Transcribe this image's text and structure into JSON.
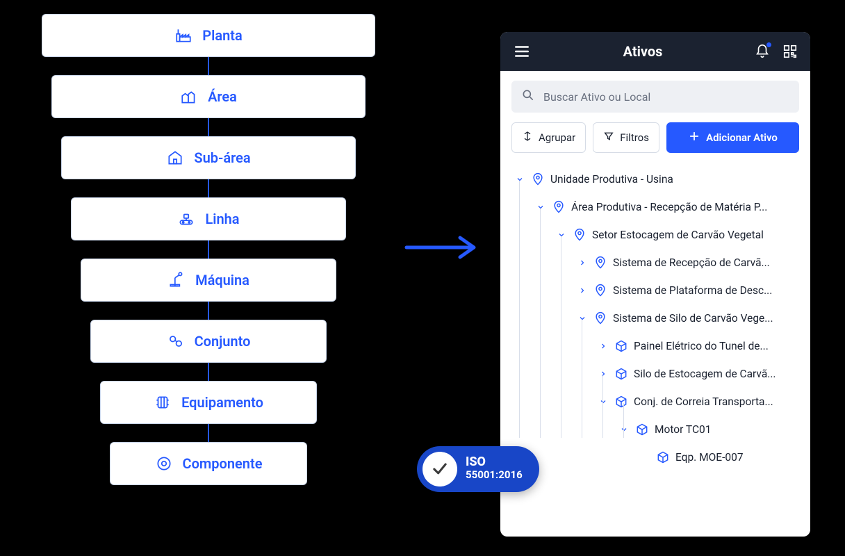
{
  "colors": {
    "accent": "#2659ff",
    "pageBg": "#000000",
    "panelBg": "#ffffff",
    "headerBg": "#1b2230",
    "searchBg": "#eef0f4",
    "border": "#d6dce6",
    "textMuted": "#6a7180",
    "isoBadge": "#1846c7"
  },
  "hierarchy": [
    {
      "label": "Planta",
      "icon": "factory"
    },
    {
      "label": "Área",
      "icon": "houses"
    },
    {
      "label": "Sub-área",
      "icon": "house"
    },
    {
      "label": "Linha",
      "icon": "conveyor"
    },
    {
      "label": "Máquina",
      "icon": "robot"
    },
    {
      "label": "Conjunto",
      "icon": "gears"
    },
    {
      "label": "Equipamento",
      "icon": "equipment"
    },
    {
      "label": "Componente",
      "icon": "component"
    }
  ],
  "mobile": {
    "title": "Ativos",
    "searchPlaceholder": "Buscar Ativo ou Local",
    "groupBtn": "Agrupar",
    "filterBtn": "Filtros",
    "addBtn": "Adicionar Ativo",
    "tree": [
      {
        "indent": 0,
        "chev": "down",
        "icon": "pin",
        "label": "Unidade Produtiva - Usina"
      },
      {
        "indent": 1,
        "chev": "down",
        "icon": "pin",
        "label": "Área Produtiva - Recepção de Matéria P..."
      },
      {
        "indent": 2,
        "chev": "down",
        "icon": "pin",
        "label": "Setor Estocagem de Carvão Vegetal"
      },
      {
        "indent": 3,
        "chev": "right",
        "icon": "pin",
        "label": "Sistema de Recepção de Carvã..."
      },
      {
        "indent": 3,
        "chev": "right",
        "icon": "pin",
        "label": "Sistema de Plataforma de Desc..."
      },
      {
        "indent": 3,
        "chev": "down",
        "icon": "pin",
        "label": "Sistema de Silo de Carvão Vege..."
      },
      {
        "indent": 4,
        "chev": "right",
        "icon": "cube",
        "label": "Painel Elétrico do Tunel de..."
      },
      {
        "indent": 4,
        "chev": "right",
        "icon": "cube",
        "label": "Silo de Estocagem de Carvã..."
      },
      {
        "indent": 4,
        "chev": "down",
        "icon": "cube",
        "label": "Conj. de Correia Transporta..."
      },
      {
        "indent": 5,
        "chev": "down",
        "icon": "cube",
        "label": "Motor TC01"
      },
      {
        "indent": 6,
        "chev": "none",
        "icon": "cube",
        "label": "Eqp. MOE-007"
      }
    ]
  },
  "iso": {
    "line1": "ISO",
    "line2": "55001:2016"
  }
}
